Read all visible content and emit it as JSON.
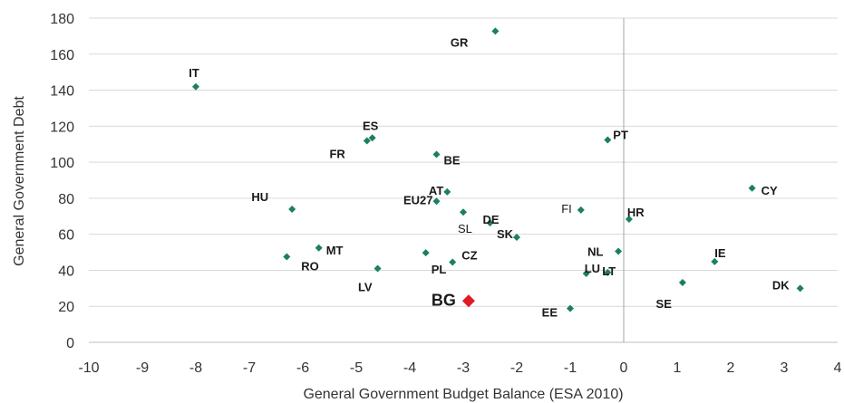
{
  "chart_data": {
    "type": "scatter",
    "title": "",
    "xlabel": "General Government Budget Balance (ESA 2010)",
    "ylabel": "General Government Debt",
    "xlim": [
      -10,
      4
    ],
    "ylim": [
      0,
      180
    ],
    "xticks": [
      -10,
      -9,
      -8,
      -7,
      -6,
      -5,
      -4,
      -3,
      -2,
      -1,
      0,
      1,
      2,
      3,
      4
    ],
    "yticks": [
      0,
      20,
      40,
      60,
      80,
      100,
      120,
      140,
      160,
      180
    ],
    "grid": "horizontal",
    "zero_line": "vertical at x=0",
    "marker_color": "#1a7f64",
    "highlight_color": "#e01b24",
    "points": [
      {
        "label": "GR",
        "x": -2.4,
        "y": 172.8
      },
      {
        "label": "IT",
        "x": -8.0,
        "y": 141.9
      },
      {
        "label": "ES",
        "x": -4.7,
        "y": 113.5
      },
      {
        "label": "FR",
        "x": -4.8,
        "y": 111.9
      },
      {
        "label": "PT",
        "x": -0.3,
        "y": 112.4
      },
      {
        "label": "BE",
        "x": -3.5,
        "y": 104.3
      },
      {
        "label": "CY",
        "x": 2.4,
        "y": 85.6
      },
      {
        "label": "AT",
        "x": -3.3,
        "y": 83.5
      },
      {
        "label": "EU27",
        "x": -3.5,
        "y": 78.3
      },
      {
        "label": "HU",
        "x": -6.2,
        "y": 73.9
      },
      {
        "label": "FI",
        "x": -0.8,
        "y": 73.5
      },
      {
        "label": "SL",
        "x": -3.0,
        "y": 72.3
      },
      {
        "label": "HR",
        "x": 0.1,
        "y": 68.4
      },
      {
        "label": "DE",
        "x": -2.5,
        "y": 66.3
      },
      {
        "label": "SK",
        "x": -2.0,
        "y": 58.3
      },
      {
        "label": "MT",
        "x": -5.7,
        "y": 52.4
      },
      {
        "label": "NL",
        "x": -0.1,
        "y": 50.5
      },
      {
        "label": "PL",
        "x": -3.7,
        "y": 49.7
      },
      {
        "label": "RO",
        "x": -6.3,
        "y": 47.5
      },
      {
        "label": "CZ",
        "x": -3.2,
        "y": 44.5
      },
      {
        "label": "IE",
        "x": 1.7,
        "y": 44.8
      },
      {
        "label": "LV",
        "x": -4.6,
        "y": 41.0
      },
      {
        "label": "LT",
        "x": -0.3,
        "y": 38.8
      },
      {
        "label": "LU",
        "x": -0.7,
        "y": 38.2
      },
      {
        "label": "SE",
        "x": 1.1,
        "y": 33.2
      },
      {
        "label": "DK",
        "x": 3.3,
        "y": 30.0
      },
      {
        "label": "BG",
        "x": -2.9,
        "y": 23.0,
        "highlight": true
      },
      {
        "label": "EE",
        "x": -1.0,
        "y": 18.8
      }
    ]
  }
}
